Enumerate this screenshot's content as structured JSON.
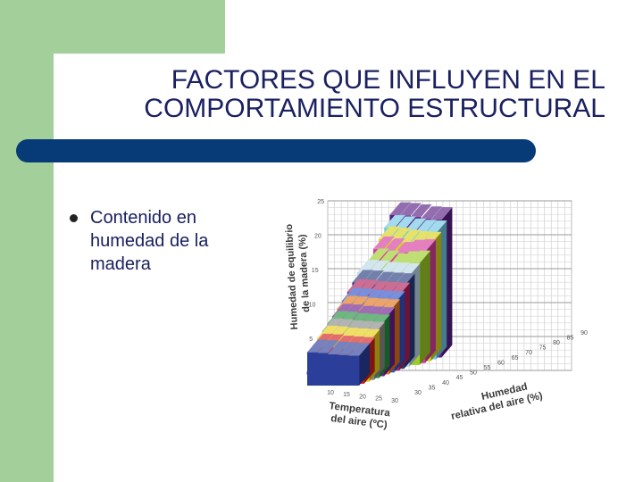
{
  "slide": {
    "title": "FACTORES QUE INFLUYEN EN EL\nCOMPORTAMIENTO ESTRUCTURAL",
    "bullet": "Contenido en humedad de la madera",
    "colors": {
      "green": "#a3cf9a",
      "bar": "#063b78",
      "title_text": "#1a2060"
    }
  },
  "chart_data": {
    "type": "bar",
    "title": "",
    "zlabel": [
      "Humedad de equilibrio",
      "de la madera (%)"
    ],
    "xlabel": [
      "Temperatura",
      "del aire (ºC)"
    ],
    "ylabel": [
      "Humedad",
      "relativa del aire (%)"
    ],
    "zlim": [
      0,
      25
    ],
    "z_ticks": [
      "0",
      "5",
      "10",
      "15",
      "20",
      "25"
    ],
    "temperature_ticks": [
      "10",
      "15",
      "20",
      "25",
      "30"
    ],
    "humidity_ticks": [
      "30",
      "35",
      "40",
      "45",
      "50",
      "55",
      "60",
      "65",
      "70",
      "75",
      "80",
      "85",
      "90"
    ],
    "series": [
      {
        "color": "#2a3e9a",
        "values": [
          4.9,
          4.8,
          4.6,
          4.5,
          4.4
        ]
      },
      {
        "color": "#d21f1f",
        "values": [
          5.5,
          5.4,
          5.2,
          5.1,
          5.0
        ]
      },
      {
        "color": "#e8ce12",
        "values": [
          6.4,
          6.3,
          6.1,
          6.0,
          5.9
        ]
      },
      {
        "color": "#8a8a8a",
        "values": [
          7.2,
          7.1,
          6.9,
          6.8,
          6.7
        ]
      },
      {
        "color": "#20923c",
        "values": [
          8.0,
          7.9,
          7.7,
          7.6,
          7.5
        ]
      },
      {
        "color": "#6a1f8e",
        "values": [
          8.8,
          8.7,
          8.5,
          8.4,
          8.3
        ]
      },
      {
        "color": "#e07318",
        "values": [
          9.7,
          9.6,
          9.4,
          9.3,
          9.2
        ]
      },
      {
        "color": "#2f52c9",
        "values": [
          10.6,
          10.5,
          10.3,
          10.2,
          10.1
        ]
      },
      {
        "color": "#b01f5a",
        "values": [
          11.6,
          11.5,
          11.3,
          11.2,
          11.1
        ]
      },
      {
        "color": "#283c7e",
        "values": [
          12.7,
          12.6,
          12.4,
          12.3,
          12.2
        ]
      },
      {
        "color": "#bcd7e6",
        "values": [
          13.9,
          13.8,
          13.6,
          13.5,
          13.4
        ]
      },
      {
        "color": "#9ccc27",
        "values": [
          15.3,
          15.0,
          14.6,
          14.9,
          15.0
        ]
      },
      {
        "color": "#d63b9e",
        "values": [
          16.8,
          16.5,
          16.0,
          16.3,
          16.4
        ]
      },
      {
        "color": "#d7d21c",
        "values": [
          18.0,
          17.8,
          17.5,
          17.3,
          17.2
        ]
      },
      {
        "color": "#6ec8e4",
        "values": [
          19.4,
          19.2,
          18.9,
          18.7,
          18.6
        ]
      },
      {
        "color": "#5a1f86",
        "values": [
          21.0,
          20.9,
          20.7,
          20.4,
          20.3
        ]
      }
    ]
  }
}
